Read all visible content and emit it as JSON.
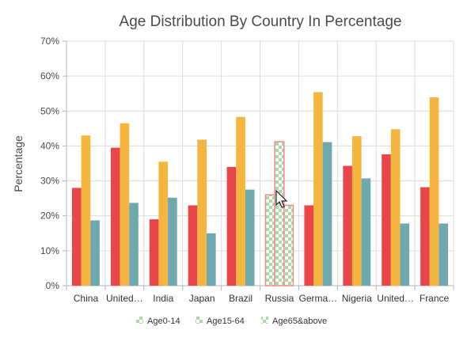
{
  "chart_data": {
    "type": "bar",
    "title": "Age Distribution By Country In Percentage",
    "ylabel": "Percentage",
    "xlabel": "",
    "ylim": [
      0,
      70
    ],
    "yticks": [
      0,
      10,
      20,
      30,
      40,
      50,
      60,
      70
    ],
    "ytick_suffix": "%",
    "grid": true,
    "legend_position": "bottom",
    "categories": [
      "China",
      "United…",
      "India",
      "Japan",
      "Brazil",
      "Russia",
      "Germa…",
      "Nigeria",
      "United…",
      "France"
    ],
    "series": [
      {
        "name": "Age0-14",
        "color": "#e94649",
        "values": [
          28,
          39.5,
          19,
          23,
          34,
          26,
          23,
          34.3,
          37.6,
          28.2
        ]
      },
      {
        "name": "Age15-64",
        "color": "#f6b53f",
        "values": [
          43,
          46.5,
          35.5,
          41.8,
          48.3,
          41.2,
          55.4,
          42.8,
          44.8,
          53.9
        ]
      },
      {
        "name": "Age65&above",
        "color": "#6fa8ae",
        "values": [
          18.7,
          23.7,
          25.2,
          15,
          27.5,
          23,
          41.1,
          30.7,
          17.8,
          17.8
        ]
      }
    ],
    "selected_category": "Russia",
    "selection_pattern_color": "#9fd79f",
    "selection_border_color": "#f08a8a"
  }
}
